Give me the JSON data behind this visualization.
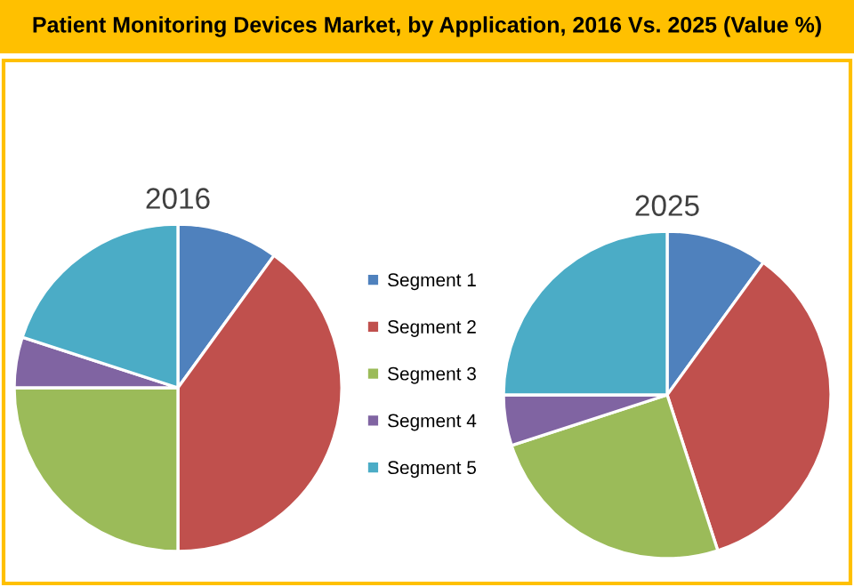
{
  "chart_data": [
    {
      "type": "pie",
      "title": "Patient Monitoring Devices Market, by Application, 2016 Vs. 2025 (Value %)",
      "subtitle": "2016",
      "categories": [
        "Segment 1",
        "Segment 2",
        "Segment 3",
        "Segment 4",
        "Segment 5"
      ],
      "values": [
        10,
        40,
        25,
        5,
        20
      ],
      "colors": [
        "#4f81bd",
        "#c0504d",
        "#9bbb59",
        "#8064a2",
        "#4bacc6"
      ],
      "legend": "right"
    },
    {
      "type": "pie",
      "subtitle": "2025",
      "categories": [
        null,
        null,
        null,
        null,
        null
      ],
      "values": [
        10,
        35,
        25,
        5,
        25
      ],
      "colors": [
        "#4f81bd",
        "#c0504d",
        "#9bbb59",
        "#8064a2",
        "#4bacc6"
      ]
    }
  ]
}
